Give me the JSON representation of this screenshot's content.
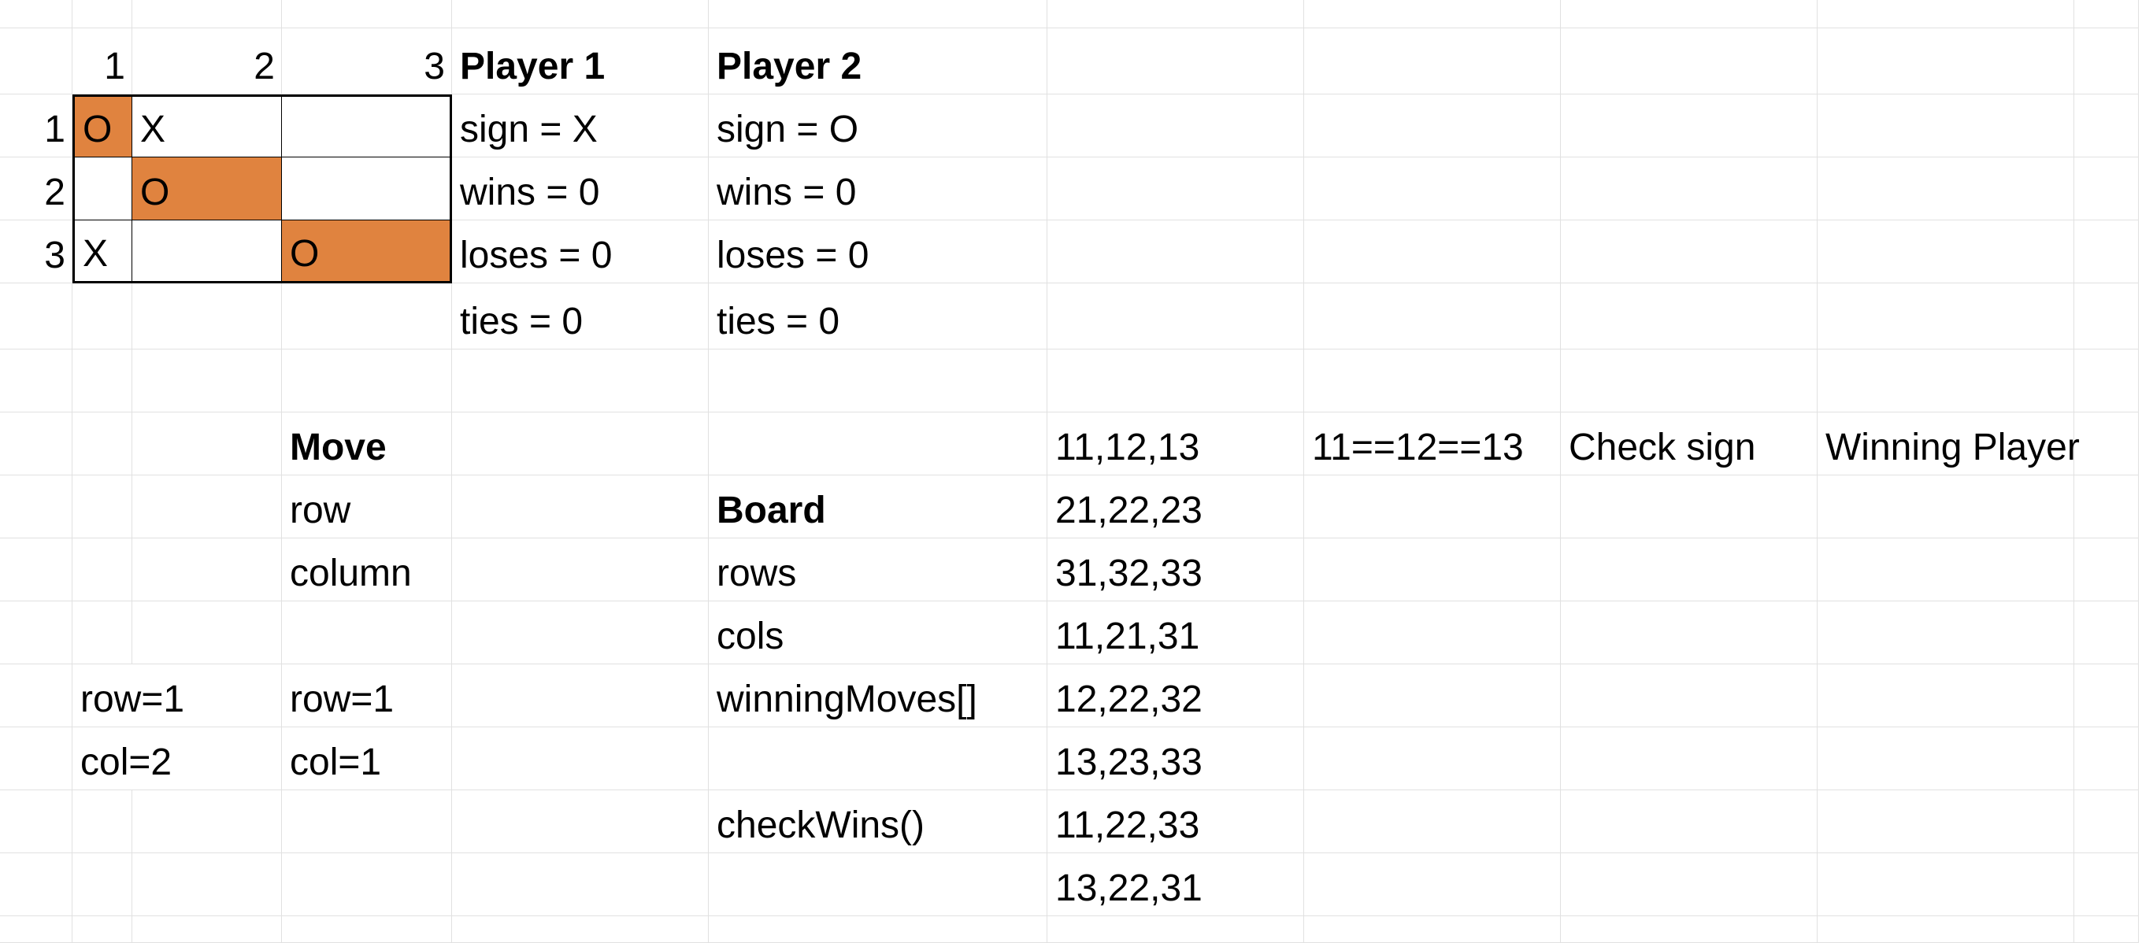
{
  "board": {
    "col_headers": [
      "1",
      "2",
      "3"
    ],
    "row_headers": [
      "1",
      "2",
      "3"
    ],
    "cells": [
      [
        "O",
        "X",
        ""
      ],
      [
        "",
        "O",
        ""
      ],
      [
        "X",
        "",
        "O"
      ]
    ],
    "highlight_color": "#e0833f"
  },
  "player1": {
    "title": "Player 1",
    "sign": "sign = X",
    "wins": "wins = 0",
    "loses": "loses = 0",
    "ties": "ties = 0"
  },
  "player2": {
    "title": "Player 2",
    "sign": "sign = O",
    "wins": "wins = 0",
    "loses": "loses = 0",
    "ties": "ties = 0"
  },
  "move": {
    "title": "Move",
    "row": "row",
    "column": "column",
    "example_a": {
      "row": "row=1",
      "col": "col=2"
    },
    "example_b": {
      "row": "row=1",
      "col": "col=1"
    }
  },
  "board_section": {
    "title": "Board",
    "rows": "rows",
    "cols": "cols",
    "winning_moves": "winningMoves[]",
    "check_wins": "checkWins()"
  },
  "winning_moves_list": [
    "11,12,13",
    "21,22,23",
    "31,32,33",
    "11,21,31",
    "12,22,32",
    "13,23,33",
    "11,22,33",
    "13,22,31"
  ],
  "check": {
    "condition": "11==12==13",
    "check_sign": "Check sign",
    "winning_player": "Winning Player"
  }
}
